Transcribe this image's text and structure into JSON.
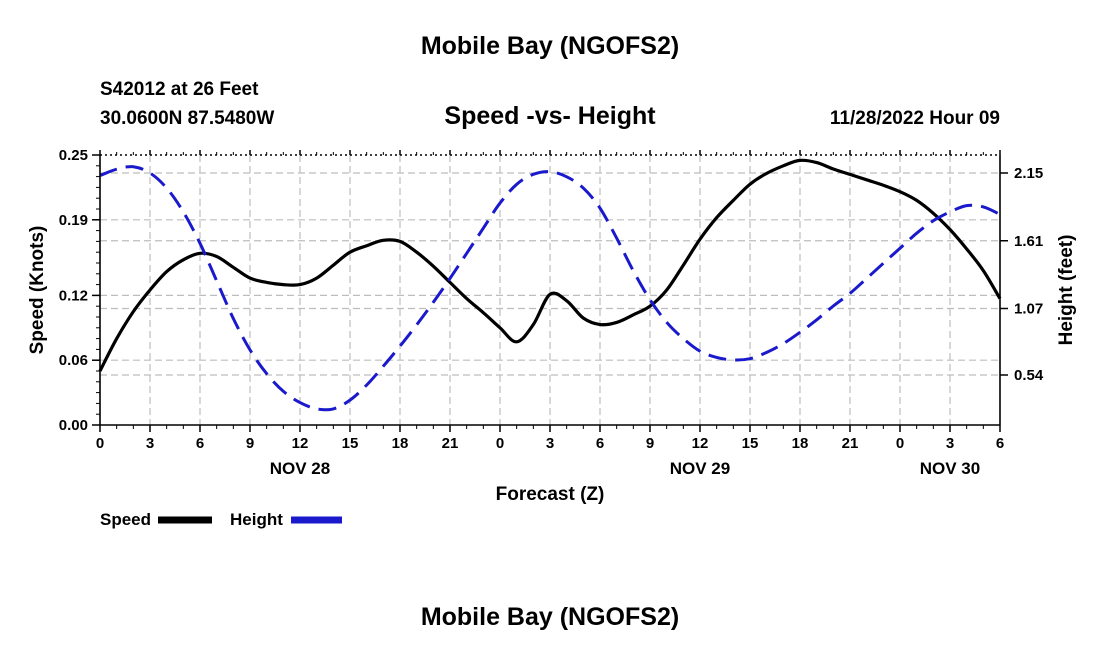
{
  "header": {
    "title": "Mobile Bay (NGOFS2)",
    "station": "S42012 at 26 Feet",
    "location": "30.0600N  87.5480W",
    "timestamp": "11/28/2022 Hour 09",
    "footer_title": "Mobile Bay (NGOFS2)"
  },
  "legend": {
    "speed_label": "Speed",
    "height_label": "Height"
  },
  "chart_data": {
    "type": "line",
    "title": "Speed -vs- Height",
    "xlabel": "Forecast (Z)",
    "ylabel_left": "Speed (Knots)",
    "ylabel_right": "Height (feet)",
    "x_unit": "hours from 11/28/2022 00Z",
    "x_range": [
      0,
      54
    ],
    "x_tick_labels": [
      "0",
      "3",
      "6",
      "9",
      "12",
      "15",
      "18",
      "21",
      "0",
      "3",
      "6",
      "9",
      "12",
      "15",
      "18",
      "21",
      "0",
      "3",
      "6"
    ],
    "date_labels": [
      {
        "label": "NOV 28",
        "at_hour": 12
      },
      {
        "label": "NOV 29",
        "at_hour": 36
      },
      {
        "label": "NOV 30",
        "at_hour": 51
      }
    ],
    "ylim_left": [
      0,
      0.25
    ],
    "left_ticks": [
      "0.00",
      "0.06",
      "0.12",
      "0.19",
      "0.25"
    ],
    "right_ticks": [
      "0.54",
      "1.07",
      "1.61",
      "2.15"
    ],
    "grid": true,
    "legend_position": "bottom-left",
    "colors": {
      "speed": "#000000",
      "height": "#1a1acc"
    },
    "series": [
      {
        "name": "Speed",
        "axis": "left",
        "style": "solid",
        "x": [
          0,
          1,
          2,
          3,
          4,
          5,
          6,
          7,
          8,
          9,
          10,
          11,
          12,
          13,
          14,
          15,
          16,
          17,
          18,
          19,
          20,
          21,
          22,
          23,
          24,
          25,
          26,
          27,
          28,
          29,
          30,
          31,
          32,
          33,
          34,
          35,
          36,
          37,
          38,
          39,
          40,
          41,
          42,
          43,
          44,
          45,
          46,
          47,
          48,
          49,
          50,
          51,
          52,
          53,
          54
        ],
        "values": [
          0.05,
          0.08,
          0.105,
          0.125,
          0.142,
          0.153,
          0.159,
          0.156,
          0.146,
          0.136,
          0.132,
          0.13,
          0.13,
          0.136,
          0.148,
          0.16,
          0.166,
          0.171,
          0.17,
          0.16,
          0.147,
          0.132,
          0.117,
          0.104,
          0.09,
          0.077,
          0.093,
          0.121,
          0.115,
          0.099,
          0.093,
          0.095,
          0.102,
          0.11,
          0.125,
          0.148,
          0.172,
          0.192,
          0.208,
          0.223,
          0.233,
          0.24,
          0.245,
          0.243,
          0.237,
          0.232,
          0.227,
          0.222,
          0.216,
          0.208,
          0.196,
          0.181,
          0.163,
          0.143,
          0.117
        ]
      },
      {
        "name": "Height",
        "axis": "right",
        "style": "dashed",
        "x": [
          0,
          1,
          2,
          3,
          4,
          5,
          6,
          7,
          8,
          9,
          10,
          11,
          12,
          13,
          14,
          15,
          16,
          17,
          18,
          19,
          20,
          21,
          22,
          23,
          24,
          25,
          26,
          27,
          28,
          29,
          30,
          31,
          32,
          33,
          34,
          35,
          36,
          37,
          38,
          39,
          40,
          41,
          42,
          43,
          44,
          45,
          46,
          47,
          48,
          49,
          50,
          51,
          52,
          53,
          54
        ],
        "values": [
          2.13,
          2.18,
          2.2,
          2.15,
          2.03,
          1.84,
          1.59,
          1.29,
          0.99,
          0.74,
          0.55,
          0.41,
          0.32,
          0.27,
          0.27,
          0.34,
          0.46,
          0.61,
          0.77,
          0.94,
          1.12,
          1.31,
          1.51,
          1.71,
          1.91,
          2.06,
          2.14,
          2.16,
          2.12,
          2.03,
          1.87,
          1.63,
          1.37,
          1.14,
          0.96,
          0.83,
          0.73,
          0.68,
          0.66,
          0.67,
          0.72,
          0.79,
          0.88,
          0.98,
          1.09,
          1.19,
          1.31,
          1.43,
          1.55,
          1.67,
          1.77,
          1.84,
          1.89,
          1.88,
          1.82
        ]
      }
    ]
  }
}
